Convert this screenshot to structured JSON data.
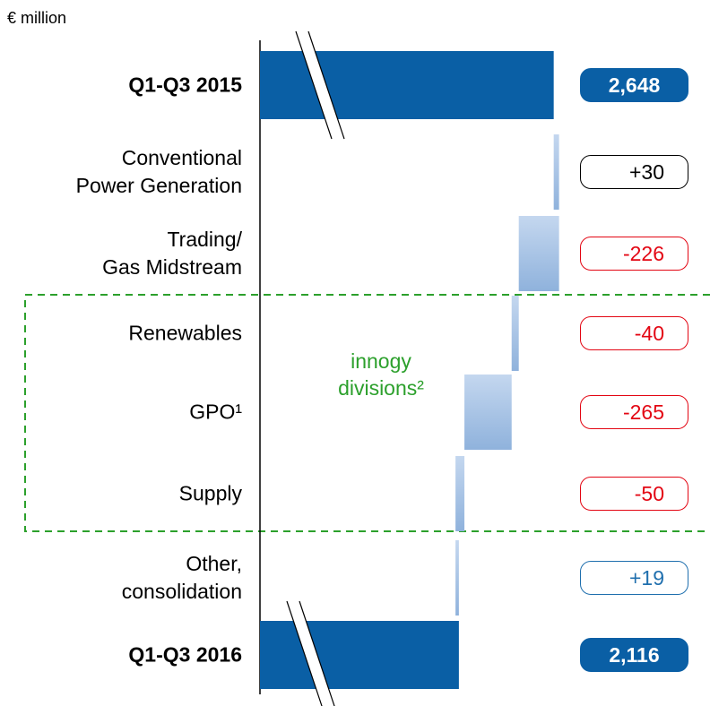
{
  "chart_data": {
    "type": "waterfall",
    "unit_label": "€ million",
    "categories": [
      "Q1-Q3 2015",
      "Conventional\nPower Generation",
      "Trading/\nGas Midstream",
      "Renewables",
      "GPO¹",
      "Supply",
      "Other,\nconsolidation",
      "Q1-Q3 2016"
    ],
    "measure": [
      "total",
      "relative",
      "relative",
      "relative",
      "relative",
      "relative",
      "relative",
      "total"
    ],
    "values": [
      2648,
      30,
      -226,
      -40,
      -265,
      -50,
      19,
      2116
    ],
    "value_labels": [
      "2,648",
      "+30",
      "-226",
      "-40",
      "-265",
      "-50",
      "+19",
      "2,116"
    ],
    "box_colors": [
      "#0a5fa5",
      "#000000",
      "#e30613",
      "#e30613",
      "#e30613",
      "#e30613",
      "#1f6fae",
      "#0a5fa5"
    ],
    "total_color": "#0a5fa5",
    "delta_color": "#a3c0e4",
    "annotation": "innogy\ndivisions²",
    "xlim": [
      1000,
      2700
    ]
  }
}
